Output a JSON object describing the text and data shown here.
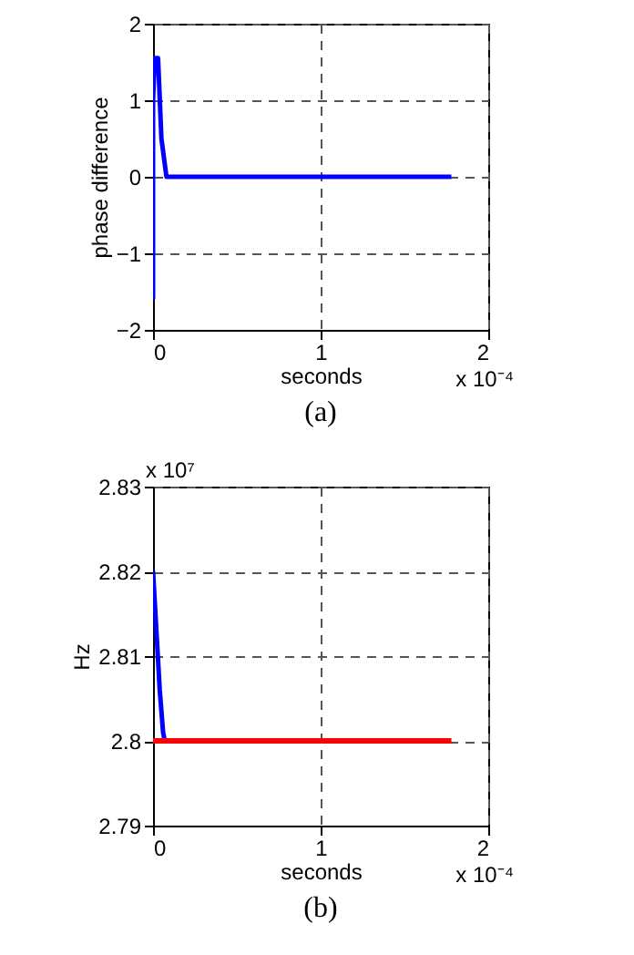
{
  "chart_data": [
    {
      "type": "line",
      "title": "(a)",
      "xlabel": "seconds",
      "ylabel": "phase difference",
      "xlim": [
        0,
        2
      ],
      "xticks": [
        0,
        1,
        2
      ],
      "ylim": [
        -2,
        2
      ],
      "yticks": [
        -2,
        -1,
        0,
        1,
        2
      ],
      "grid": true,
      "line_style": "solid",
      "annotations": [
        "x 10⁻⁴"
      ],
      "series": [
        {
          "color": "#0000ff",
          "x": [
            0,
            0,
            0.01,
            0.03,
            0.05,
            0.08,
            0.3,
            1.78
          ],
          "values": [
            -1.6,
            1.0,
            1.55,
            1.55,
            0.5,
            0,
            0,
            0
          ]
        }
      ]
    },
    {
      "type": "line",
      "title": "(b)",
      "xlabel": "seconds",
      "ylabel": "Hz",
      "xlim": [
        0,
        2
      ],
      "xticks": [
        0,
        1,
        2
      ],
      "ylim": [
        2.79,
        2.83
      ],
      "yticks": [
        2.79,
        2.8,
        2.81,
        2.82,
        2.83
      ],
      "grid": true,
      "line_style": "solid",
      "annotations": [
        "x 10⁷",
        "x 10⁻⁴"
      ],
      "series": [
        {
          "color": "#0000ff",
          "x": [
            0,
            0.02,
            0.04,
            0.06,
            0.07
          ],
          "values": [
            2.82,
            2.813,
            2.806,
            2.801,
            2.8
          ]
        },
        {
          "color": "#ff0000",
          "x": [
            0,
            1.78
          ],
          "values": [
            2.8,
            2.8
          ]
        }
      ]
    }
  ]
}
